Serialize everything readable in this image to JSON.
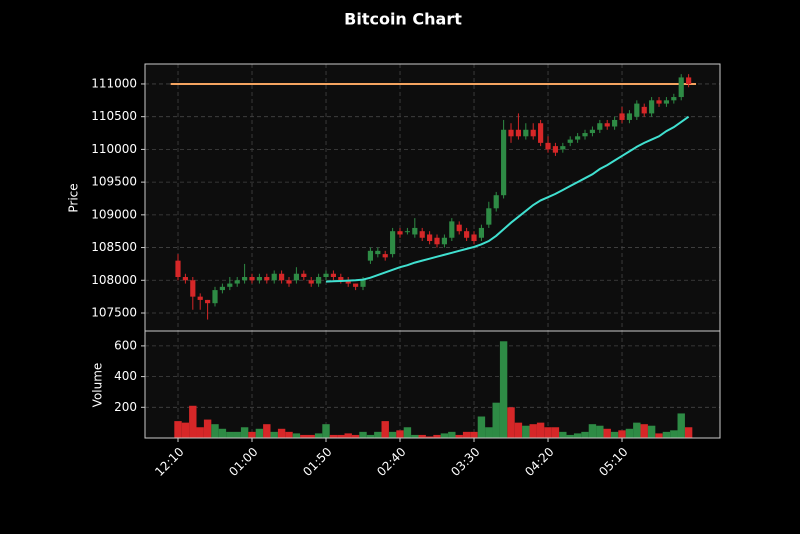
{
  "chart_data": {
    "type": "candlestick",
    "title": "Bitcoin Chart",
    "y_label": "Price",
    "volume_label": "Volume",
    "categories": [
      "12:10",
      null,
      null,
      null,
      null,
      null,
      null,
      null,
      null,
      null,
      "01:00",
      null,
      null,
      null,
      null,
      null,
      null,
      null,
      null,
      null,
      "01:50",
      null,
      null,
      null,
      null,
      null,
      null,
      null,
      null,
      null,
      "02:40",
      null,
      null,
      null,
      null,
      null,
      null,
      null,
      null,
      null,
      "03:30",
      null,
      null,
      null,
      null,
      null,
      null,
      null,
      null,
      null,
      "04:20",
      null,
      null,
      null,
      null,
      null,
      null,
      null,
      null,
      null,
      "05:10",
      null,
      null,
      null,
      null,
      null,
      null,
      null,
      null,
      null
    ],
    "open": [
      108300,
      108050,
      108000,
      107750,
      107700,
      107650,
      107850,
      107900,
      107950,
      108000,
      108050,
      108000,
      108050,
      108000,
      108100,
      108000,
      108000,
      108100,
      108000,
      107950,
      108050,
      108100,
      108050,
      108000,
      107950,
      107900,
      108300,
      108400,
      108400,
      108400,
      108750,
      108750,
      108700,
      108750,
      108700,
      108650,
      108550,
      108650,
      108850,
      108750,
      108700,
      108650,
      108850,
      109100,
      109300,
      110300,
      110300,
      110200,
      110300,
      110400,
      110100,
      110050,
      110000,
      110100,
      110150,
      110200,
      110250,
      110300,
      110400,
      110350,
      110550,
      110450,
      110500,
      110650,
      110550,
      110750,
      110700,
      110750,
      110800,
      111100
    ],
    "high": [
      108400,
      108100,
      108050,
      107800,
      107700,
      107900,
      107950,
      108050,
      108050,
      108250,
      108100,
      108100,
      108100,
      108150,
      108150,
      108050,
      108200,
      108150,
      108050,
      108100,
      108150,
      108150,
      108100,
      108050,
      107950,
      108050,
      108500,
      108500,
      108450,
      108800,
      108800,
      108800,
      108950,
      108800,
      108750,
      108700,
      108700,
      108950,
      108900,
      108800,
      108750,
      108850,
      109200,
      109350,
      110450,
      110400,
      110550,
      110400,
      110400,
      110450,
      110200,
      110100,
      110100,
      110200,
      110250,
      110300,
      110350,
      110450,
      110450,
      110500,
      110650,
      110600,
      110750,
      110700,
      110800,
      110800,
      110800,
      110850,
      111150,
      111150
    ],
    "low": [
      108000,
      107950,
      107550,
      107550,
      107400,
      107600,
      107800,
      107850,
      107900,
      107950,
      107950,
      107950,
      107950,
      107950,
      107950,
      107900,
      107950,
      108000,
      107900,
      107900,
      108000,
      108000,
      107950,
      107900,
      107850,
      107850,
      108250,
      108350,
      108300,
      108350,
      108650,
      108700,
      108650,
      108600,
      108550,
      108500,
      108500,
      108600,
      108700,
      108600,
      108550,
      108600,
      108800,
      109050,
      109250,
      110100,
      110150,
      110150,
      110150,
      110050,
      109950,
      109900,
      109950,
      110050,
      110100,
      110150,
      110200,
      110250,
      110300,
      110300,
      110400,
      110400,
      110450,
      110500,
      110500,
      110650,
      110650,
      110700,
      110750,
      110950
    ],
    "close": [
      108050,
      108000,
      107750,
      107700,
      107650,
      107850,
      107900,
      107950,
      108000,
      108050,
      108000,
      108050,
      108000,
      108100,
      108000,
      107950,
      108100,
      108050,
      107950,
      108050,
      108100,
      108050,
      108000,
      107950,
      107900,
      108000,
      108450,
      108450,
      108350,
      108750,
      108700,
      108750,
      108800,
      108650,
      108600,
      108550,
      108650,
      108900,
      108750,
      108650,
      108600,
      108800,
      109100,
      109300,
      110300,
      110200,
      110200,
      110300,
      110200,
      110100,
      110000,
      109950,
      110050,
      110150,
      110200,
      110250,
      110300,
      110400,
      110350,
      110450,
      110450,
      110550,
      110700,
      110550,
      110750,
      110700,
      110750,
      110800,
      111100,
      111000
    ],
    "volume": [
      110,
      100,
      210,
      70,
      120,
      90,
      60,
      40,
      40,
      70,
      40,
      60,
      90,
      40,
      60,
      40,
      30,
      20,
      20,
      30,
      90,
      20,
      20,
      30,
      20,
      40,
      20,
      40,
      110,
      40,
      50,
      70,
      20,
      20,
      10,
      20,
      30,
      40,
      20,
      40,
      40,
      140,
      70,
      230,
      630,
      200,
      100,
      80,
      90,
      100,
      70,
      70,
      40,
      20,
      30,
      40,
      90,
      80,
      60,
      40,
      50,
      60,
      100,
      90,
      80,
      30,
      40,
      50,
      160,
      70
    ],
    "moving_average": {
      "color": "#40e0d0",
      "values": [
        null,
        null,
        null,
        null,
        null,
        null,
        null,
        null,
        null,
        null,
        null,
        null,
        null,
        null,
        null,
        null,
        null,
        null,
        null,
        null,
        107980,
        107985,
        107990,
        107995,
        108000,
        108010,
        108040,
        108080,
        108120,
        108160,
        108200,
        108230,
        108270,
        108300,
        108330,
        108360,
        108390,
        108420,
        108450,
        108480,
        108510,
        108550,
        108600,
        108680,
        108780,
        108880,
        108970,
        109060,
        109150,
        109220,
        109270,
        109320,
        109380,
        109440,
        109500,
        109560,
        109620,
        109700,
        109760,
        109830,
        109900,
        109970,
        110040,
        110100,
        110150,
        110200,
        110280,
        110340,
        110420,
        110500
      ]
    },
    "hline": {
      "value": 111000,
      "color": "#f4a460"
    },
    "up_color": "#2e8b45",
    "down_color": "#d62728",
    "xlim": [
      -4.46,
      73.24
    ],
    "ylim": [
      107225,
      111305
    ],
    "yticks": [
      107500,
      108000,
      108500,
      109000,
      109500,
      110000,
      110500,
      111000
    ],
    "volume_ylim": [
      0,
      697
    ],
    "volume_ticks": [
      200,
      400,
      600
    ],
    "grid": true
  }
}
